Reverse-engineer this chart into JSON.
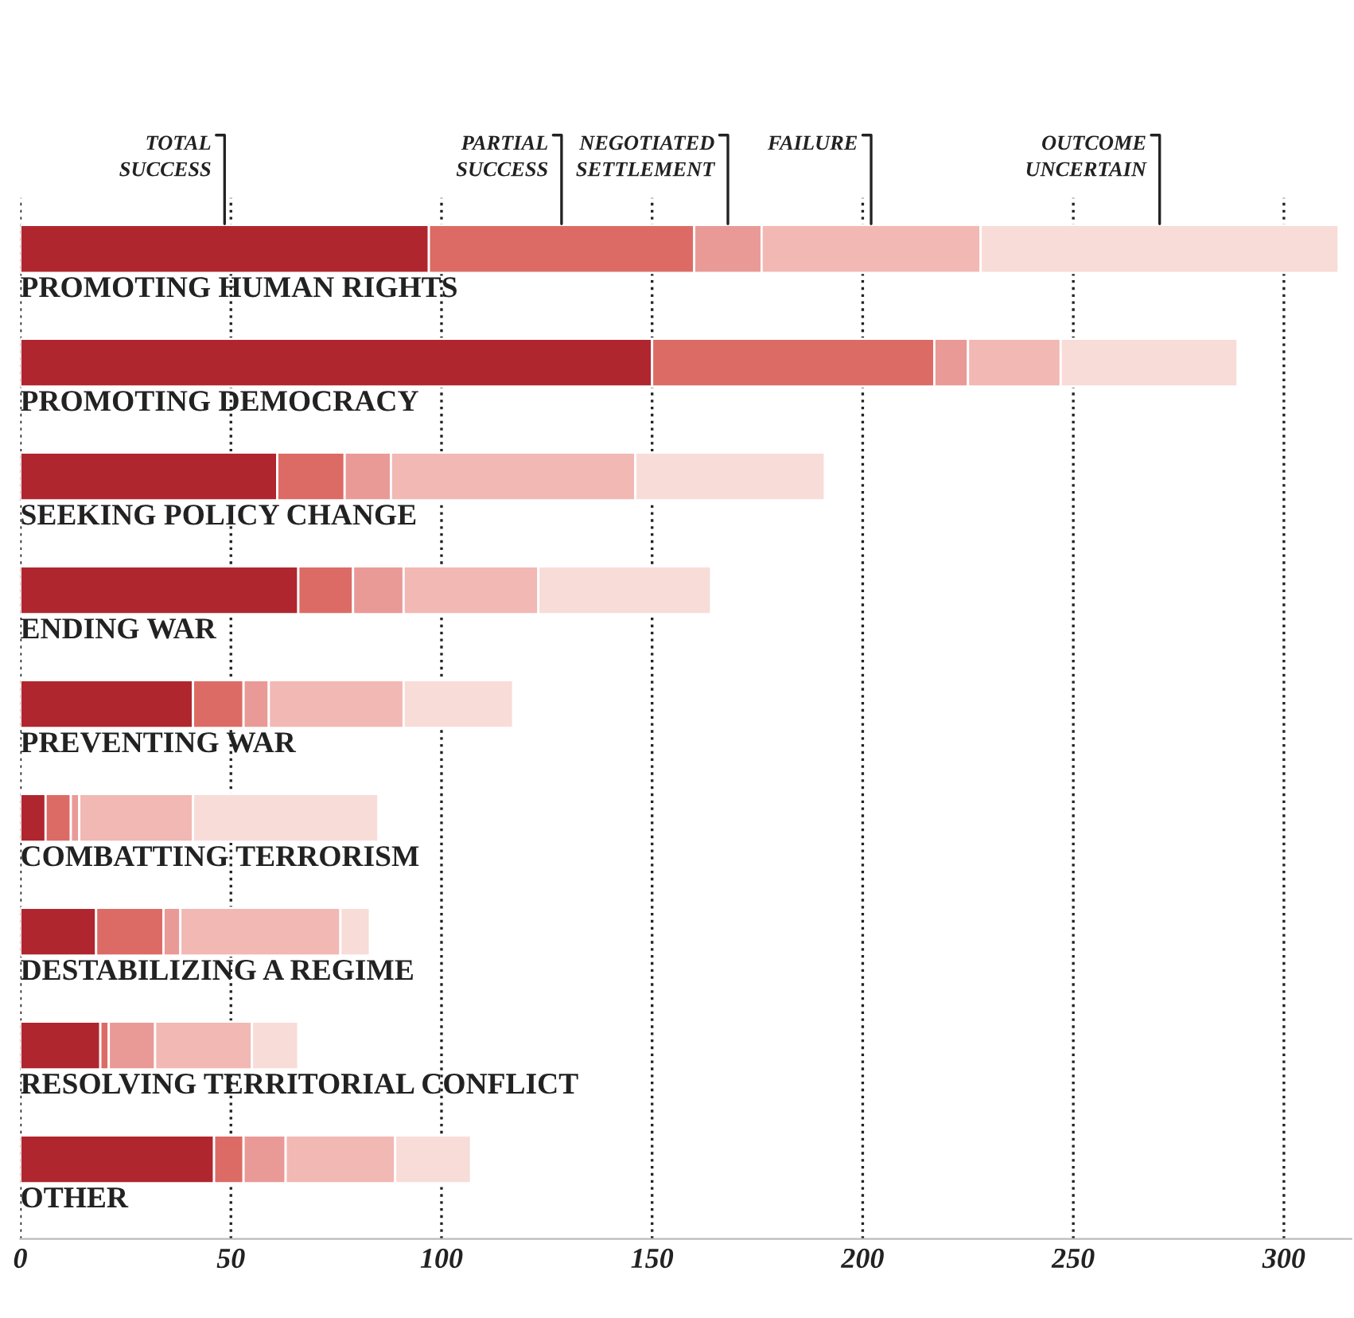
{
  "chart_data": {
    "type": "bar",
    "orientation": "horizontal",
    "stacked": true,
    "legend": false,
    "grid": "x",
    "line_style": "dotted",
    "categories": [
      "PROMOTING HUMAN RIGHTS",
      "PROMOTING DEMOCRACY",
      "SEEKING POLICY CHANGE",
      "ENDING WAR",
      "PREVENTING WAR",
      "COMBATTING TERRORISM",
      "DESTABILIZING A REGIME",
      "RESOLVING TERRITORIAL CONFLICT",
      "OTHER"
    ],
    "series": [
      {
        "name": "TOTAL SUCCESS",
        "color": "#b0262f",
        "values": [
          97,
          150,
          61,
          66,
          41,
          6,
          18,
          19,
          46
        ]
      },
      {
        "name": "PARTIAL SUCCESS",
        "color": "#dc6b66",
        "values": [
          63,
          67,
          16,
          13,
          12,
          6,
          16,
          2,
          7
        ]
      },
      {
        "name": "NEGOTIATED SETTLEMENT",
        "color": "#e99a97",
        "values": [
          16,
          8,
          11,
          12,
          6,
          2,
          4,
          11,
          10
        ]
      },
      {
        "name": "FAILURE",
        "color": "#f2b8b4",
        "values": [
          52,
          22,
          58,
          32,
          32,
          27,
          38,
          23,
          26
        ]
      },
      {
        "name": "OUTCOME UNCERTAIN",
        "color": "#f8dcd8",
        "values": [
          85,
          42,
          45,
          41,
          26,
          44,
          7,
          11,
          18
        ]
      }
    ],
    "xlim": [
      0,
      316
    ],
    "xticks": [
      0,
      50,
      100,
      150,
      200,
      250,
      300
    ]
  }
}
